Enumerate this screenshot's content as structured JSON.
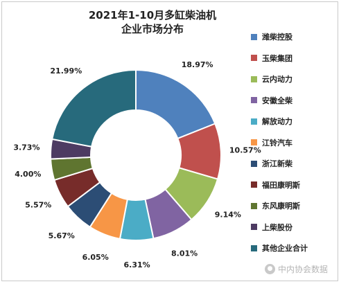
{
  "chart_data": {
    "type": "pie",
    "variant": "donut",
    "title": "2021年1-10月多缸柴油机企业市场分布",
    "title_lines": [
      "2021年1-10月多缸柴油机",
      "企业市场分布"
    ],
    "legend_position": "right",
    "categories": [
      "潍柴控股",
      "玉柴集团",
      "云内动力",
      "安徽全柴",
      "解放动力",
      "江铃汽车",
      "浙江新柴",
      "福田康明斯",
      "东风康明斯",
      "上柴股份",
      "其他企业合计"
    ],
    "values": [
      18.97,
      10.57,
      9.14,
      8.01,
      6.31,
      6.05,
      5.67,
      5.57,
      4.0,
      3.73,
      21.99
    ],
    "labels": [
      "18.97%",
      "10.57%",
      "9.14%",
      "8.01%",
      "6.31%",
      "6.05%",
      "5.67%",
      "5.57%",
      "4.00%",
      "3.73%",
      "21.99%"
    ],
    "colors": [
      "#4f81bd",
      "#c0504d",
      "#9bbb59",
      "#8064a2",
      "#4bacc6",
      "#f79646",
      "#2c4d75",
      "#772c2a",
      "#5f7530",
      "#4d3b62",
      "#276a7c"
    ]
  },
  "watermark": {
    "text": "中内协会数据",
    "icon": "wechat-icon"
  }
}
